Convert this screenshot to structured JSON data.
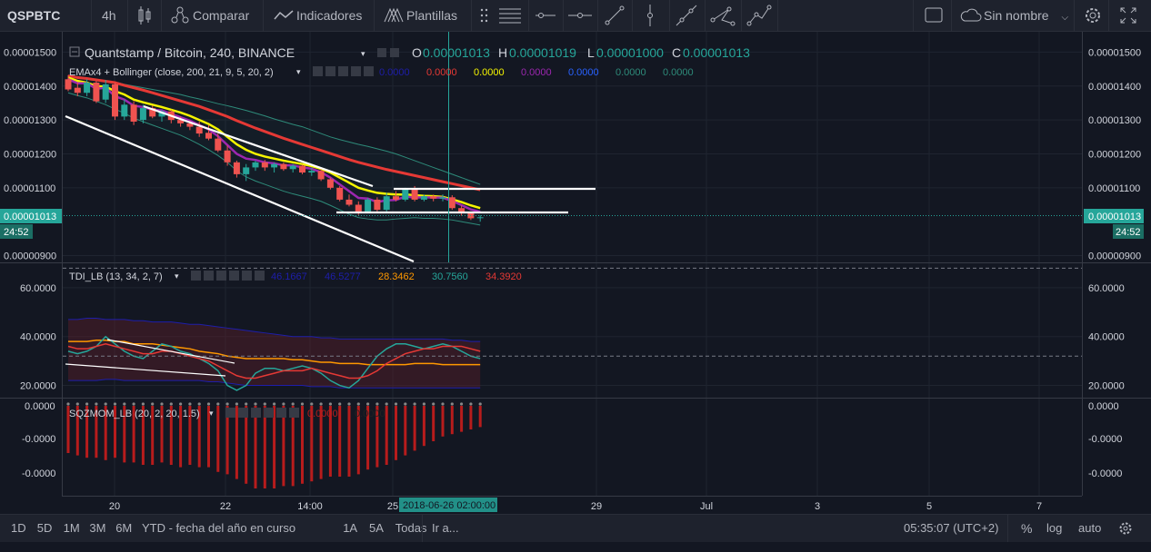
{
  "toolbar": {
    "symbol": "QSPBTC",
    "interval": "4h",
    "compare_label": "Comparar",
    "indicators_label": "Indicadores",
    "templates_label": "Plantillas",
    "layout_name": "Sin nombre"
  },
  "legend": {
    "title": "Quantstamp / Bitcoin, 240, BINANCE",
    "ohlc": {
      "o_label": "O",
      "o": "0.00001013",
      "h_label": "H",
      "h": "0.00001019",
      "l_label": "L",
      "l": "0.00001000",
      "c_label": "C",
      "c": "0.00001013"
    },
    "ema_label": "EMAx4 + Bollinger (close, 200, 21, 9, 5, 20, 2)",
    "ema_values": [
      {
        "text": "0.0000",
        "color": "#1e1eaa"
      },
      {
        "text": "0.0000",
        "color": "#e53935"
      },
      {
        "text": "0.0000",
        "color": "#f5f500"
      },
      {
        "text": "0.0000",
        "color": "#9c27b0"
      },
      {
        "text": "0.0000",
        "color": "#2962ff"
      },
      {
        "text": "0.0000",
        "color": "#2e8b7a"
      },
      {
        "text": "0.0000",
        "color": "#2e8b7a"
      }
    ],
    "tdi_label": "TDI_LB (13, 34, 2, 7)",
    "tdi_values": [
      {
        "text": "46.1667",
        "color": "#1e1eaa"
      },
      {
        "text": "46.5277",
        "color": "#1e1eaa"
      },
      {
        "text": "28.3462",
        "color": "#ff9800"
      },
      {
        "text": "30.7560",
        "color": "#26a69a"
      },
      {
        "text": "34.3920",
        "color": "#e53935"
      }
    ],
    "sqz_label": "SQZMOM_LB (20, 2, 20, 1.5)",
    "sqz_values": [
      {
        "text": "0.0000",
        "color": "#b71c1c"
      },
      {
        "text": "0.0000",
        "color": "#222222"
      }
    ]
  },
  "price_axis": {
    "labels": [
      "0.00001500",
      "0.00001400",
      "0.00001300",
      "0.00001200",
      "0.00001100",
      "0.00000900"
    ],
    "current_price": "0.00001013",
    "countdown": "24:52"
  },
  "tdi_axis": {
    "labels": [
      "60.0000",
      "40.0000",
      "20.0000"
    ]
  },
  "sqz_axis": {
    "labels": [
      "0.0000",
      "-0.0000",
      "-0.0000"
    ]
  },
  "time_axis": {
    "labels": [
      "20",
      "22",
      "14:00",
      "25",
      "29",
      "Jul",
      "3",
      "5",
      "7"
    ],
    "crosshair_label": "2018-06-26 02:00:00"
  },
  "bottom": {
    "ranges": [
      "1D",
      "5D",
      "1M",
      "3M",
      "6M",
      "YTD - fecha del año en curso",
      "1A",
      "5A",
      "Todas"
    ],
    "goto_label": "Ir a...",
    "clock": "05:35:07 (UTC+2)",
    "percent_label": "%",
    "log_label": "log",
    "auto_label": "auto"
  },
  "colors": {
    "up": "#26a69a",
    "down": "#ef5350",
    "ema_red": "#e53935",
    "ema_yellow": "#f5f500",
    "ema_purple": "#9c27b0",
    "bollinger": "#2e8b7a",
    "last_price_badge": "#26a69a"
  },
  "chart_data": [
    {
      "type": "candlestick",
      "title": "Quantstamp / Bitcoin, 240, BINANCE",
      "ylim": [
        8.8e-06,
        1.56e-05
      ],
      "candles": [
        {
          "o": 1.42e-05,
          "h": 1.432e-05,
          "l": 1.385e-05,
          "c": 1.39e-05
        },
        {
          "o": 1.395e-05,
          "h": 1.41e-05,
          "l": 1.37e-05,
          "c": 1.38e-05
        },
        {
          "o": 1.38e-05,
          "h": 1.42e-05,
          "l": 1.37e-05,
          "c": 1.41e-05
        },
        {
          "o": 1.41e-05,
          "h": 1.415e-05,
          "l": 1.35e-05,
          "c": 1.355e-05
        },
        {
          "o": 1.36e-05,
          "h": 1.418e-05,
          "l": 1.35e-05,
          "c": 1.405e-05
        },
        {
          "o": 1.405e-05,
          "h": 1.41e-05,
          "l": 1.3e-05,
          "c": 1.31e-05
        },
        {
          "o": 1.31e-05,
          "h": 1.36e-05,
          "l": 1.3e-05,
          "c": 1.345e-05
        },
        {
          "o": 1.345e-05,
          "h": 1.355e-05,
          "l": 1.285e-05,
          "c": 1.295e-05
        },
        {
          "o": 1.3e-05,
          "h": 1.345e-05,
          "l": 1.29e-05,
          "c": 1.335e-05
        },
        {
          "o": 1.335e-05,
          "h": 1.342e-05,
          "l": 1.305e-05,
          "c": 1.31e-05
        },
        {
          "o": 1.31e-05,
          "h": 1.33e-05,
          "l": 1.295e-05,
          "c": 1.325e-05
        },
        {
          "o": 1.325e-05,
          "h": 1.33e-05,
          "l": 1.29e-05,
          "c": 1.3e-05
        },
        {
          "o": 1.3e-05,
          "h": 1.31e-05,
          "l": 1.28e-05,
          "c": 1.29e-05
        },
        {
          "o": 1.29e-05,
          "h": 1.298e-05,
          "l": 1.27e-05,
          "c": 1.28e-05
        },
        {
          "o": 1.28e-05,
          "h": 1.295e-05,
          "l": 1.25e-05,
          "c": 1.26e-05
        },
        {
          "o": 1.262e-05,
          "h": 1.285e-05,
          "l": 1.24e-05,
          "c": 1.245e-05
        },
        {
          "o": 1.245e-05,
          "h": 1.26e-05,
          "l": 1.205e-05,
          "c": 1.21e-05
        },
        {
          "o": 1.21e-05,
          "h": 1.225e-05,
          "l": 1.165e-05,
          "c": 1.175e-05
        },
        {
          "o": 1.175e-05,
          "h": 1.18e-05,
          "l": 1.13e-05,
          "c": 1.14e-05
        },
        {
          "o": 1.14e-05,
          "h": 1.17e-05,
          "l": 1.12e-05,
          "c": 1.16e-05
        },
        {
          "o": 1.16e-05,
          "h": 1.18e-05,
          "l": 1.15e-05,
          "c": 1.175e-05
        },
        {
          "o": 1.175e-05,
          "h": 1.182e-05,
          "l": 1.15e-05,
          "c": 1.16e-05
        },
        {
          "o": 1.16e-05,
          "h": 1.175e-05,
          "l": 1.145e-05,
          "c": 1.17e-05
        },
        {
          "o": 1.17e-05,
          "h": 1.175e-05,
          "l": 1.15e-05,
          "c": 1.155e-05
        },
        {
          "o": 1.155e-05,
          "h": 1.17e-05,
          "l": 1.145e-05,
          "c": 1.165e-05
        },
        {
          "o": 1.165e-05,
          "h": 1.168e-05,
          "l": 1.14e-05,
          "c": 1.145e-05
        },
        {
          "o": 1.145e-05,
          "h": 1.16e-05,
          "l": 1.135e-05,
          "c": 1.15e-05
        },
        {
          "o": 1.15e-05,
          "h": 1.155e-05,
          "l": 1.12e-05,
          "c": 1.125e-05
        },
        {
          "o": 1.125e-05,
          "h": 1.13e-05,
          "l": 1.095e-05,
          "c": 1.1e-05
        },
        {
          "o": 1.1e-05,
          "h": 1.105e-05,
          "l": 1.06e-05,
          "c": 1.065e-05
        },
        {
          "o": 1.065e-05,
          "h": 1.08e-05,
          "l": 1.045e-05,
          "c": 1.05e-05
        },
        {
          "o": 1.05e-05,
          "h": 1.06e-05,
          "l": 1.02e-05,
          "c": 1.03e-05
        },
        {
          "o": 1.03e-05,
          "h": 1.07e-05,
          "l": 1.025e-05,
          "c": 1.065e-05
        },
        {
          "o": 1.065e-05,
          "h": 1.072e-05,
          "l": 1.03e-05,
          "c": 1.035e-05
        },
        {
          "o": 1.035e-05,
          "h": 1.085e-05,
          "l": 1.03e-05,
          "c": 1.075e-05
        },
        {
          "o": 1.075e-05,
          "h": 1.09e-05,
          "l": 1.06e-05,
          "c": 1.065e-05
        },
        {
          "o": 1.065e-05,
          "h": 1.1e-05,
          "l": 1.06e-05,
          "c": 1.095e-05
        },
        {
          "o": 1.095e-05,
          "h": 1.105e-05,
          "l": 1.06e-05,
          "c": 1.065e-05
        },
        {
          "o": 1.065e-05,
          "h": 1.08e-05,
          "l": 1.06e-05,
          "c": 1.075e-05
        },
        {
          "o": 1.075e-05,
          "h": 1.08e-05,
          "l": 1.06e-05,
          "c": 1.068e-05
        },
        {
          "o": 1.068e-05,
          "h": 1.08e-05,
          "l": 1.06e-05,
          "c": 1.072e-05
        },
        {
          "o": 1.072e-05,
          "h": 1.078e-05,
          "l": 1.035e-05,
          "c": 1.04e-05
        },
        {
          "o": 1.04e-05,
          "h": 1.048e-05,
          "l": 1.018e-05,
          "c": 1.025e-05
        },
        {
          "o": 1.025e-05,
          "h": 1.03e-05,
          "l": 1.005e-05,
          "c": 1.01e-05
        },
        {
          "o": 1.013e-05,
          "h": 1.019e-05,
          "l": 1e-05,
          "c": 1.013e-05
        }
      ],
      "ema_red": [
        1.43e-05,
        1.425e-05,
        1.422e-05,
        1.418e-05,
        1.414e-05,
        1.41e-05,
        1.402e-05,
        1.395e-05,
        1.388e-05,
        1.38e-05,
        1.372e-05,
        1.364e-05,
        1.356e-05,
        1.348e-05,
        1.34e-05,
        1.33e-05,
        1.32e-05,
        1.31e-05,
        1.298e-05,
        1.287e-05,
        1.276e-05,
        1.266e-05,
        1.256e-05,
        1.246e-05,
        1.237e-05,
        1.228e-05,
        1.219e-05,
        1.21e-05,
        1.201e-05,
        1.192e-05,
        1.183e-05,
        1.175e-05,
        1.168e-05,
        1.161e-05,
        1.154e-05,
        1.148e-05,
        1.142e-05,
        1.136e-05,
        1.13e-05,
        1.124e-05,
        1.118e-05,
        1.112e-05,
        1.106e-05,
        1.1e-05,
        1.094e-05
      ],
      "ema_yellow": [
        1.425e-05,
        1.415e-05,
        1.41e-05,
        1.4e-05,
        1.398e-05,
        1.385e-05,
        1.375e-05,
        1.36e-05,
        1.352e-05,
        1.345e-05,
        1.338e-05,
        1.33e-05,
        1.322e-05,
        1.312e-05,
        1.3e-05,
        1.288e-05,
        1.272e-05,
        1.25e-05,
        1.228e-05,
        1.212e-05,
        1.2e-05,
        1.192e-05,
        1.186e-05,
        1.18e-05,
        1.175e-05,
        1.17e-05,
        1.164e-05,
        1.156e-05,
        1.145e-05,
        1.13e-05,
        1.115e-05,
        1.1e-05,
        1.092e-05,
        1.085e-05,
        1.082e-05,
        1.08e-05,
        1.08e-05,
        1.078e-05,
        1.076e-05,
        1.075e-05,
        1.073e-05,
        1.066e-05,
        1.058e-05,
        1.048e-05,
        1.04e-05
      ],
      "ema_purple": [
        1.42e-05,
        1.408e-05,
        1.408e-05,
        1.392e-05,
        1.395e-05,
        1.37e-05,
        1.36e-05,
        1.342e-05,
        1.338e-05,
        1.33e-05,
        1.328e-05,
        1.318e-05,
        1.308e-05,
        1.298e-05,
        1.285e-05,
        1.272e-05,
        1.252e-05,
        1.226e-05,
        1.2e-05,
        1.186e-05,
        1.182e-05,
        1.175e-05,
        1.172e-05,
        1.166e-05,
        1.166e-05,
        1.16e-05,
        1.156e-05,
        1.146e-05,
        1.13e-05,
        1.11e-05,
        1.09e-05,
        1.07e-05,
        1.068e-05,
        1.058e-05,
        1.063e-05,
        1.064e-05,
        1.074e-05,
        1.071e-05,
        1.072e-05,
        1.071e-05,
        1.071e-05,
        1.061e-05,
        1.049e-05,
        1.036e-05,
        1.029e-05
      ],
      "bb_upper": [
        1.43e-05,
        1.425e-05,
        1.42e-05,
        1.418e-05,
        1.415e-05,
        1.412e-05,
        1.405e-05,
        1.4e-05,
        1.395e-05,
        1.39e-05,
        1.385e-05,
        1.38e-05,
        1.375e-05,
        1.368e-05,
        1.362e-05,
        1.355e-05,
        1.348e-05,
        1.342e-05,
        1.335e-05,
        1.328e-05,
        1.32e-05,
        1.312e-05,
        1.303e-05,
        1.295e-05,
        1.287e-05,
        1.28e-05,
        1.27e-05,
        1.26e-05,
        1.25e-05,
        1.242e-05,
        1.235e-05,
        1.228e-05,
        1.222e-05,
        1.215e-05,
        1.208e-05,
        1.2e-05,
        1.19e-05,
        1.18e-05,
        1.17e-05,
        1.16e-05,
        1.15e-05,
        1.14e-05,
        1.13e-05,
        1.12e-05,
        1.11e-05
      ],
      "bb_lower": [
        1.38e-05,
        1.372e-05,
        1.365e-05,
        1.355e-05,
        1.345e-05,
        1.332e-05,
        1.32e-05,
        1.305e-05,
        1.295e-05,
        1.285e-05,
        1.275e-05,
        1.265e-05,
        1.255e-05,
        1.242e-05,
        1.228e-05,
        1.212e-05,
        1.195e-05,
        1.175e-05,
        1.15e-05,
        1.132e-05,
        1.12e-05,
        1.11e-05,
        1.1e-05,
        1.09e-05,
        1.082e-05,
        1.075e-05,
        1.068e-05,
        1.06e-05,
        1.048e-05,
        1.035e-05,
        1.022e-05,
        1.012e-05,
        1.008e-05,
        1.005e-05,
        1.005e-05,
        1.008e-05,
        1.01e-05,
        1.012e-05,
        1.01e-05,
        1.01e-05,
        1.008e-05,
        1.005e-05,
        1e-05,
        9.95e-06,
        9.9e-06
      ]
    },
    {
      "type": "line",
      "title": "TDI_LB (13, 34, 2, 7)",
      "ylim": [
        15,
        70
      ],
      "series": [
        {
          "values": [
            47,
            47,
            47.5,
            47.5,
            47,
            47,
            47,
            46.5,
            46.5,
            46,
            46,
            46,
            45.5,
            45,
            45,
            44.5,
            44,
            43.5,
            43,
            42.5,
            42,
            41.5,
            41,
            40.5,
            40,
            40,
            40,
            39.5,
            39.5,
            39,
            39,
            39,
            39,
            39,
            39,
            39,
            39,
            39,
            39,
            39,
            39,
            38.5,
            38.5,
            38,
            38
          ]
        },
        {
          "values": [
            22,
            22,
            22,
            22,
            22.5,
            22.5,
            22,
            22,
            22,
            22,
            22,
            22,
            22,
            22,
            22,
            21.5,
            21.5,
            21,
            20.5,
            20,
            20,
            20,
            20,
            20,
            20,
            20,
            19.5,
            19.5,
            19.5,
            19,
            19,
            19,
            19,
            19,
            19,
            19,
            19,
            19,
            19,
            19,
            19,
            19,
            19,
            19,
            19
          ]
        },
        {
          "values": [
            38,
            38,
            38,
            38.5,
            38.5,
            38,
            38,
            37,
            37,
            37,
            36.5,
            36,
            35.5,
            35,
            34,
            33.5,
            33,
            32,
            31.5,
            31,
            31,
            31,
            31,
            31,
            30.5,
            30.5,
            30,
            29.5,
            29.5,
            29,
            29,
            29,
            28.5,
            28.5,
            28.5,
            28.5,
            28.5,
            29,
            29,
            29,
            28.5,
            28.5,
            28.5,
            28.5,
            28.5
          ]
        },
        {
          "values": [
            34,
            33,
            34,
            36,
            40,
            37,
            34,
            32,
            31,
            34,
            37,
            36,
            34,
            33,
            31,
            29,
            26,
            20,
            18,
            20,
            25,
            27,
            27,
            26,
            27,
            28,
            27,
            25,
            22,
            20,
            19,
            22,
            27,
            32,
            35,
            37,
            37,
            36,
            35,
            36,
            37,
            36,
            34,
            32,
            31
          ]
        },
        {
          "values": [
            36,
            35,
            35,
            36,
            37,
            36,
            35,
            34,
            33,
            33,
            34,
            34,
            33,
            32,
            31,
            30,
            28,
            26,
            24,
            23,
            23,
            24,
            25,
            26,
            26,
            26,
            27,
            26,
            25,
            24,
            23,
            23,
            24,
            26,
            29,
            31,
            33,
            34,
            35,
            35,
            36,
            36,
            36,
            35,
            34
          ]
        }
      ],
      "ref_lines": [
        68,
        32
      ]
    },
    {
      "type": "bar",
      "title": "SQZMOM_LB (20, 2, 20, 1.5)",
      "values": [
        -20,
        -21,
        -22,
        -22,
        -23,
        -22,
        -24,
        -24,
        -25,
        -25,
        -24,
        -25,
        -26,
        -25,
        -26,
        -26,
        -28,
        -29,
        -31,
        -33,
        -35,
        -35,
        -35,
        -34,
        -34,
        -33,
        -32,
        -31,
        -30,
        -30,
        -30,
        -29,
        -27,
        -26,
        -25,
        -23,
        -21,
        -19,
        -17,
        -15,
        -13,
        -12,
        -11,
        -10,
        -9
      ]
    }
  ]
}
